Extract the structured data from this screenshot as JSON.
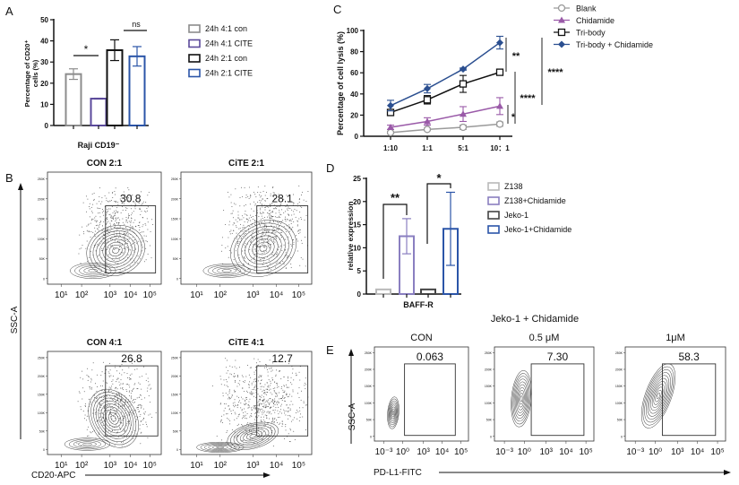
{
  "panel_letters": [
    "A",
    "B",
    "C",
    "D",
    "E"
  ],
  "chart_data": [
    {
      "id": "A",
      "type": "bar",
      "ylabel_line1": "Percentage of CD20⁺",
      "ylabel_line2": "cells (%)",
      "xlabel": "Raji CD19⁻",
      "ylim": [
        0,
        50
      ],
      "yticks": [
        "0",
        "10",
        "20",
        "30",
        "40",
        "50"
      ],
      "series": [
        {
          "name": "24h 4:1 con",
          "value": 24.3,
          "error": 2.5,
          "color": "#8c8c8c"
        },
        {
          "name": "24h 4:1 CITE",
          "value": 12.7,
          "error": 0.2,
          "color": "#5b4a9b"
        },
        {
          "name": "24h 2:1 con",
          "value": 35.6,
          "error": 4.9,
          "color": "#111111"
        },
        {
          "name": "24h 2:1 CITE",
          "value": 32.7,
          "error": 4.6,
          "color": "#2b55a8"
        }
      ],
      "significance": [
        {
          "pair": [
            0,
            1
          ],
          "label": "*"
        },
        {
          "pair": [
            2,
            3
          ],
          "label": "ns"
        }
      ],
      "legend": "right"
    },
    {
      "id": "C",
      "type": "line",
      "ylabel": "Percentage of cell lysis (%)",
      "categories": [
        "1:10",
        "1:1",
        "5:1",
        "10：1"
      ],
      "ylim": [
        0,
        100
      ],
      "yticks": [
        "0",
        "20",
        "40",
        "60",
        "80",
        "100"
      ],
      "series": [
        {
          "name": "Blank",
          "marker": "open-circle",
          "color": "#9a9a9a",
          "values": [
            3.5,
            6.5,
            8.5,
            11.5
          ],
          "errors": [
            1,
            1,
            2,
            2
          ]
        },
        {
          "name": "Chidamide",
          "marker": "triangle",
          "color": "#9a5aa8",
          "values": [
            8.5,
            14,
            21,
            28.5
          ],
          "errors": [
            2,
            3.5,
            7,
            8
          ]
        },
        {
          "name": "Tri-body",
          "marker": "open-square",
          "color": "#111111",
          "values": [
            22.5,
            34.5,
            49.5,
            60.5
          ],
          "errors": [
            2.5,
            4,
            8,
            1.5
          ]
        },
        {
          "name": "Tri-body + Chidamide",
          "marker": "diamond",
          "color": "#2b4f90",
          "values": [
            29,
            45,
            63.5,
            88.5
          ],
          "errors": [
            5,
            4,
            1,
            6
          ]
        }
      ],
      "significance": [
        {
          "range": [
            60.5,
            88.5
          ],
          "label": "**"
        },
        {
          "range": [
            11.5,
            28.5
          ],
          "label": "*"
        },
        {
          "range": [
            11.5,
            60.5
          ],
          "label": "****"
        },
        {
          "range": [
            28.5,
            88.5
          ],
          "label": "****"
        }
      ],
      "legend": "top-right"
    },
    {
      "id": "D",
      "type": "bar",
      "ylabel": "relative expression",
      "xlabel": "BAFF-R",
      "ylim": [
        0,
        25
      ],
      "yticks": [
        "0",
        "5",
        "10",
        "15",
        "20",
        "25"
      ],
      "series": [
        {
          "name": "Z138",
          "value": 1.0,
          "error": 0,
          "color": "#b9b9b9"
        },
        {
          "name": "Z138+Chidamide",
          "value": 12.5,
          "error": 3.8,
          "color": "#8a7fc0"
        },
        {
          "name": "Jeko-1",
          "value": 1.0,
          "error": 0,
          "color": "#444444"
        },
        {
          "name": "Jeko-1+Chidamide",
          "value": 14.1,
          "error": 7.9,
          "color": "#2b55a8"
        }
      ],
      "significance": [
        {
          "pair": [
            0,
            1
          ],
          "label": "**"
        },
        {
          "pair": [
            2,
            3
          ],
          "label": "*"
        }
      ],
      "legend": "right"
    },
    {
      "id": "B",
      "type": "flow-contour",
      "ylabel": "SSC-A",
      "xlabel": "CD20-APC",
      "yticks": [
        "0",
        "50K",
        "100K",
        "150K",
        "200K",
        "250K"
      ],
      "xticks": [
        "10¹",
        "10²",
        "10³",
        "10⁴",
        "10⁵"
      ],
      "plots": [
        {
          "title": "CON  2:1",
          "gate_percent": "30.8"
        },
        {
          "title": "CiTE 2:1",
          "gate_percent": "28.1"
        },
        {
          "title": "CON 4:1",
          "gate_percent": "26.8"
        },
        {
          "title": "CiTE 4:1",
          "gate_percent": "12.7"
        }
      ]
    },
    {
      "id": "E",
      "type": "flow-contour",
      "title": "Jeko-1 + Chidamide",
      "ylabel": "SSC-A",
      "xlabel": "PD-L1-FITC",
      "yticks": [
        "0",
        "50K",
        "100K",
        "150K",
        "200K",
        "250K"
      ],
      "xticks": [
        "10⁻³",
        "10⁰",
        "10³",
        "10⁴",
        "10⁵"
      ],
      "plots": [
        {
          "title": "CON",
          "gate_percent": "0.063"
        },
        {
          "title": "0.5 μM",
          "gate_percent": "7.30"
        },
        {
          "title": "1μM",
          "gate_percent": "58.3"
        }
      ]
    }
  ]
}
